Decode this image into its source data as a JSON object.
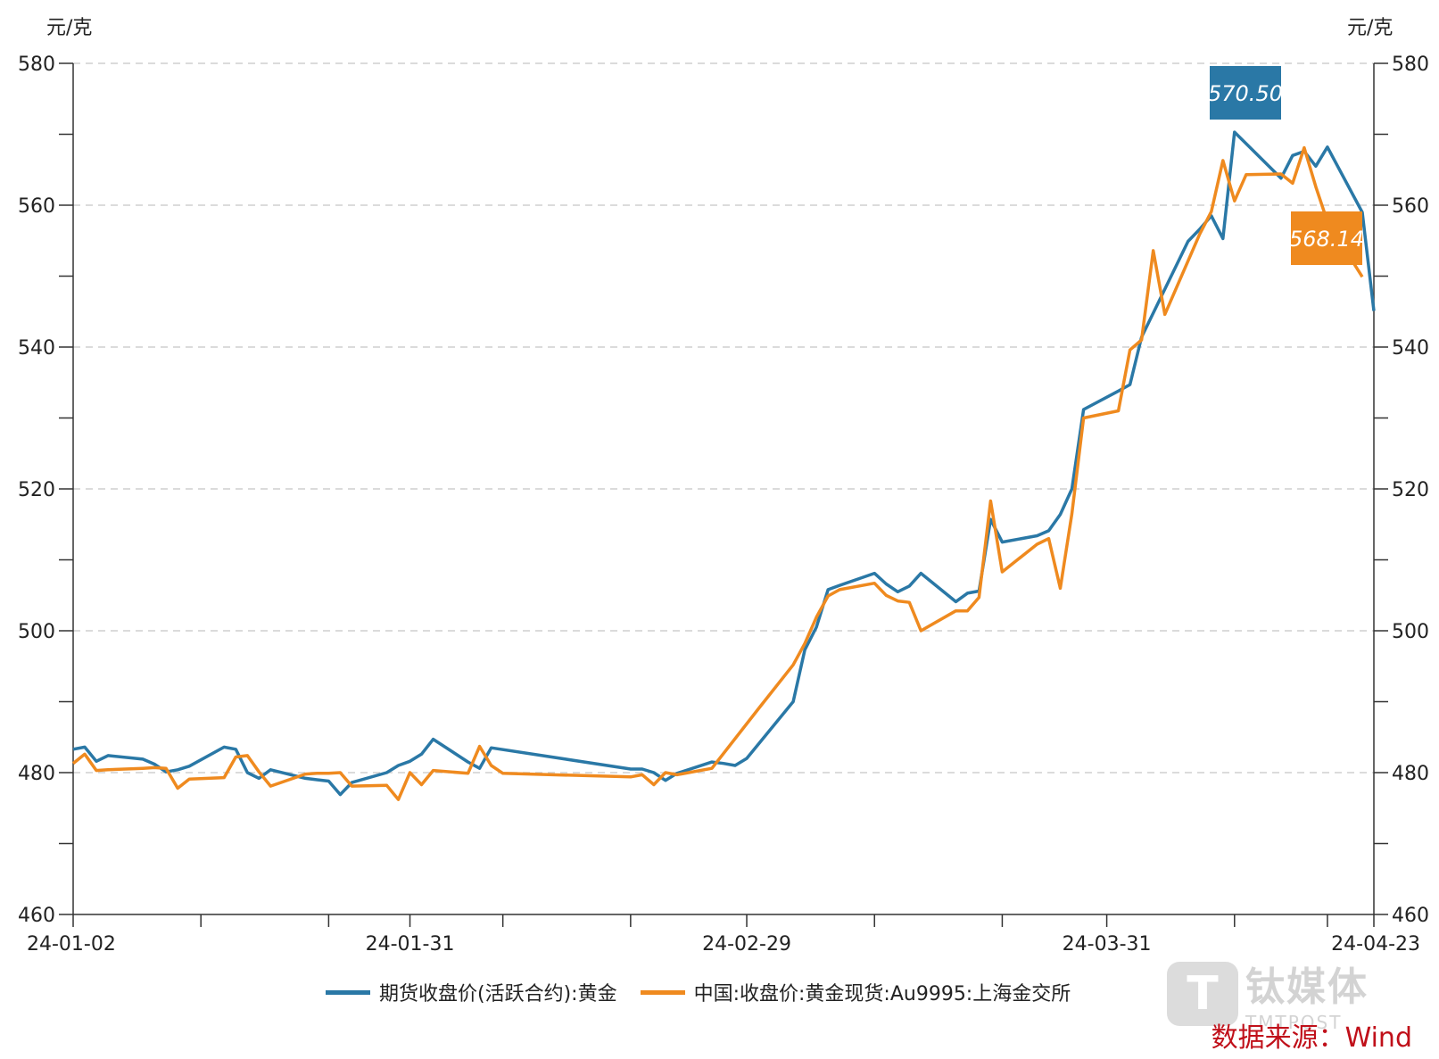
{
  "chart_data": {
    "type": "line",
    "unit_left": "元/克",
    "unit_right": "元/克",
    "ylim": [
      460,
      580
    ],
    "y_ticks": [
      "460",
      "480",
      "500",
      "520",
      "540",
      "560",
      "580"
    ],
    "x_tick_labels": [
      "24-01-02",
      "24-01-31",
      "24-02-29",
      "24-03-31",
      "24-04-23"
    ],
    "grid": true,
    "legend_position": "bottom",
    "series": [
      {
        "name": "期货收盘价(活跃合约):黄金",
        "color": "#2a78a6",
        "points": [
          [
            "2024-01-02",
            483.3
          ],
          [
            "2024-01-03",
            483.6
          ],
          [
            "2024-01-04",
            481.6
          ],
          [
            "2024-01-05",
            482.4
          ],
          [
            "2024-01-08",
            481.9
          ],
          [
            "2024-01-09",
            481.2
          ],
          [
            "2024-01-10",
            480.1
          ],
          [
            "2024-01-11",
            480.4
          ],
          [
            "2024-01-12",
            480.9
          ],
          [
            "2024-01-15",
            483.6
          ],
          [
            "2024-01-16",
            483.3
          ],
          [
            "2024-01-17",
            480.0
          ],
          [
            "2024-01-18",
            479.2
          ],
          [
            "2024-01-19",
            480.4
          ],
          [
            "2024-01-22",
            479.2
          ],
          [
            "2024-01-23",
            479.0
          ],
          [
            "2024-01-24",
            478.8
          ],
          [
            "2024-01-25",
            476.9
          ],
          [
            "2024-01-26",
            478.6
          ],
          [
            "2024-01-29",
            480.0
          ],
          [
            "2024-01-30",
            481.0
          ],
          [
            "2024-01-31",
            481.6
          ],
          [
            "2024-02-01",
            482.6
          ],
          [
            "2024-02-02",
            484.7
          ],
          [
            "2024-02-05",
            481.5
          ],
          [
            "2024-02-06",
            480.6
          ],
          [
            "2024-02-07",
            483.5
          ],
          [
            "2024-02-19",
            480.5
          ],
          [
            "2024-02-20",
            480.5
          ],
          [
            "2024-02-21",
            480.0
          ],
          [
            "2024-02-22",
            478.9
          ],
          [
            "2024-02-23",
            479.9
          ],
          [
            "2024-02-26",
            481.5
          ],
          [
            "2024-02-27",
            481.3
          ],
          [
            "2024-02-28",
            481.0
          ],
          [
            "2024-02-29",
            482.0
          ],
          [
            "2024-03-04",
            490.0
          ],
          [
            "2024-03-05",
            497.3
          ],
          [
            "2024-03-06",
            500.5
          ],
          [
            "2024-03-07",
            505.8
          ],
          [
            "2024-03-08",
            506.4
          ],
          [
            "2024-03-11",
            508.1
          ],
          [
            "2024-03-12",
            506.6
          ],
          [
            "2024-03-13",
            505.5
          ],
          [
            "2024-03-14",
            506.3
          ],
          [
            "2024-03-15",
            508.1
          ],
          [
            "2024-03-18",
            504.1
          ],
          [
            "2024-03-19",
            505.3
          ],
          [
            "2024-03-20",
            505.6
          ],
          [
            "2024-03-21",
            515.7
          ],
          [
            "2024-03-22",
            512.5
          ],
          [
            "2024-03-25",
            513.4
          ],
          [
            "2024-03-26",
            514.1
          ],
          [
            "2024-03-27",
            516.4
          ],
          [
            "2024-03-28",
            520.0
          ],
          [
            "2024-03-29",
            531.2
          ],
          [
            "2024-04-01",
            533.8
          ],
          [
            "2024-04-02",
            534.7
          ],
          [
            "2024-04-03",
            541.4
          ],
          [
            "2024-04-07",
            554.9
          ],
          [
            "2024-04-08",
            556.6
          ],
          [
            "2024-04-09",
            558.5
          ],
          [
            "2024-04-10",
            555.3
          ],
          [
            "2024-04-11",
            570.3
          ],
          [
            "2024-04-15",
            563.8
          ],
          [
            "2024-04-16",
            567.0
          ],
          [
            "2024-04-17",
            567.6
          ],
          [
            "2024-04-18",
            565.5
          ],
          [
            "2024-04-19",
            568.2
          ],
          [
            "2024-04-22",
            559.0
          ],
          [
            "2024-04-23",
            545.1
          ]
        ],
        "label_value": "570.50"
      },
      {
        "name": "中国:收盘价:黄金现货:Au9995:上海金交所",
        "color": "#ef8a1f",
        "points": [
          [
            "2024-01-02",
            481.3
          ],
          [
            "2024-01-03",
            482.6
          ],
          [
            "2024-01-04",
            480.3
          ],
          [
            "2024-01-05",
            480.4
          ],
          [
            "2024-01-08",
            480.6
          ],
          [
            "2024-01-09",
            480.7
          ],
          [
            "2024-01-10",
            480.6
          ],
          [
            "2024-01-11",
            477.8
          ],
          [
            "2024-01-12",
            479.1
          ],
          [
            "2024-01-15",
            479.3
          ],
          [
            "2024-01-16",
            482.2
          ],
          [
            "2024-01-17",
            482.4
          ],
          [
            "2024-01-18",
            480.1
          ],
          [
            "2024-01-19",
            478.1
          ],
          [
            "2024-01-22",
            479.8
          ],
          [
            "2024-01-23",
            479.9
          ],
          [
            "2024-01-24",
            479.9
          ],
          [
            "2024-01-25",
            480.0
          ],
          [
            "2024-01-26",
            478.1
          ],
          [
            "2024-01-29",
            478.2
          ],
          [
            "2024-01-30",
            476.2
          ],
          [
            "2024-01-31",
            480.0
          ],
          [
            "2024-02-01",
            478.3
          ],
          [
            "2024-02-02",
            480.3
          ],
          [
            "2024-02-05",
            479.9
          ],
          [
            "2024-02-06",
            483.7
          ],
          [
            "2024-02-07",
            481.0
          ],
          [
            "2024-02-08",
            479.9
          ],
          [
            "2024-02-19",
            479.4
          ],
          [
            "2024-02-20",
            479.7
          ],
          [
            "2024-02-21",
            478.3
          ],
          [
            "2024-02-22",
            480.0
          ],
          [
            "2024-02-23",
            479.7
          ],
          [
            "2024-02-26",
            480.6
          ],
          [
            "2024-03-01",
            489.0
          ],
          [
            "2024-03-04",
            495.2
          ],
          [
            "2024-03-05",
            498.2
          ],
          [
            "2024-03-06",
            501.9
          ],
          [
            "2024-03-07",
            504.9
          ],
          [
            "2024-03-08",
            505.8
          ],
          [
            "2024-03-11",
            506.7
          ],
          [
            "2024-03-12",
            505.0
          ],
          [
            "2024-03-13",
            504.2
          ],
          [
            "2024-03-14",
            504.0
          ],
          [
            "2024-03-15",
            500.0
          ],
          [
            "2024-03-18",
            502.8
          ],
          [
            "2024-03-19",
            502.8
          ],
          [
            "2024-03-20",
            504.7
          ],
          [
            "2024-03-21",
            518.3
          ],
          [
            "2024-03-22",
            508.3
          ],
          [
            "2024-03-25",
            512.2
          ],
          [
            "2024-03-26",
            513.0
          ],
          [
            "2024-03-27",
            506.0
          ],
          [
            "2024-03-28",
            516.5
          ],
          [
            "2024-03-29",
            530.0
          ],
          [
            "2024-04-01",
            531.0
          ],
          [
            "2024-04-02",
            539.6
          ],
          [
            "2024-04-03",
            541.0
          ],
          [
            "2024-04-04",
            553.6
          ],
          [
            "2024-04-05",
            544.6
          ],
          [
            "2024-04-08",
            555.9
          ],
          [
            "2024-04-09",
            559.1
          ],
          [
            "2024-04-10",
            566.3
          ],
          [
            "2024-04-11",
            560.6
          ],
          [
            "2024-04-12",
            564.3
          ],
          [
            "2024-04-15",
            564.4
          ],
          [
            "2024-04-16",
            563.1
          ],
          [
            "2024-04-17",
            568.1
          ],
          [
            "2024-04-18",
            562.6
          ],
          [
            "2024-04-19",
            557.7
          ],
          [
            "2024-04-22",
            549.9
          ]
        ],
        "label_value": "568.14"
      }
    ],
    "source": "数据来源：Wind"
  },
  "watermark": {
    "icon_letter": "T",
    "name_cn": "钛媒体",
    "name_en": "TMTPOST"
  }
}
